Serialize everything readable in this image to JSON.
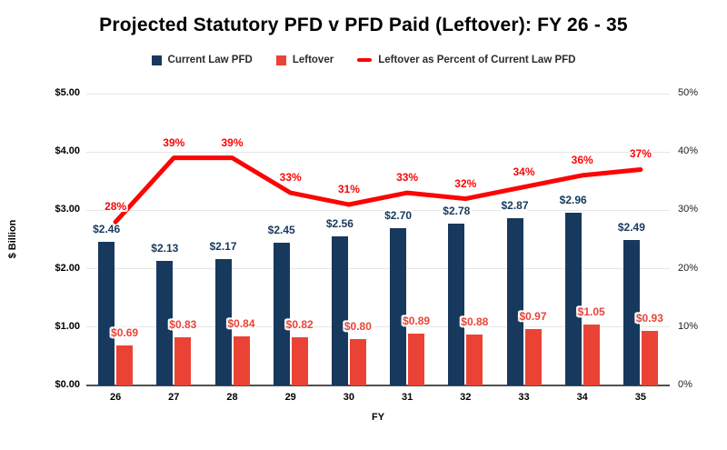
{
  "chart_data": {
    "type": "combo",
    "title": "Projected Statutory PFD v PFD Paid (Leftover): FY 26 - 35",
    "categories": [
      "26",
      "27",
      "28",
      "29",
      "30",
      "31",
      "32",
      "33",
      "34",
      "35"
    ],
    "xlabel": "FY",
    "ylabel_left": "$ Billion",
    "legend_position": "top",
    "grid": true,
    "axes": {
      "left": {
        "min": 0,
        "max": 5,
        "ticks": [
          "$0.00",
          "$1.00",
          "$2.00",
          "$3.00",
          "$4.00",
          "$5.00"
        ]
      },
      "right": {
        "min": 0,
        "max": 50,
        "ticks": [
          "0%",
          "10%",
          "20%",
          "30%",
          "40%",
          "50%"
        ]
      }
    },
    "series": [
      {
        "name": "Current Law PFD",
        "type": "bar",
        "axis": "left",
        "color": "#17395E",
        "values": [
          2.46,
          2.13,
          2.17,
          2.45,
          2.56,
          2.7,
          2.78,
          2.87,
          2.96,
          2.49
        ],
        "labels": [
          "$2.46",
          "$2.13",
          "$2.17",
          "$2.45",
          "$2.56",
          "$2.70",
          "$2.78",
          "$2.87",
          "$2.96",
          "$2.49"
        ]
      },
      {
        "name": "Leftover",
        "type": "bar",
        "axis": "left",
        "color": "#EA4335",
        "values": [
          0.69,
          0.83,
          0.84,
          0.82,
          0.8,
          0.89,
          0.88,
          0.97,
          1.05,
          0.93
        ],
        "labels": [
          "$0.69",
          "$0.83",
          "$0.84",
          "$0.82",
          "$0.80",
          "$0.89",
          "$0.88",
          "$0.97",
          "$1.05",
          "$0.93"
        ]
      },
      {
        "name": "Leftover as Percent of Current Law PFD",
        "type": "line",
        "axis": "right",
        "color": "#FB0505",
        "values": [
          28,
          39,
          39,
          33,
          31,
          33,
          32,
          34,
          36,
          37
        ],
        "labels": [
          "28%",
          "39%",
          "39%",
          "33%",
          "31%",
          "33%",
          "32%",
          "34%",
          "36%",
          "37%"
        ]
      }
    ],
    "style_colors": {
      "gridline": "#e6e6e6",
      "axis_line": "#505050",
      "title_text": "#000000"
    }
  }
}
